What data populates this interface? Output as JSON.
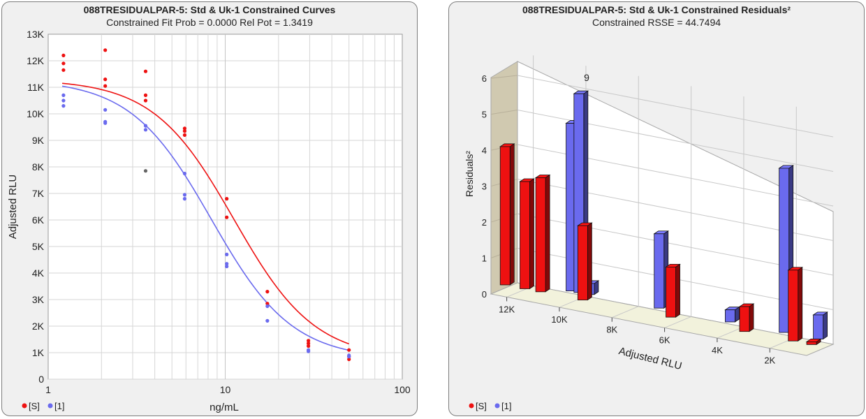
{
  "colors": {
    "std": "#ee1111",
    "uk": "#6a6aee",
    "outlier": "#666666",
    "grid": "#d6d6d6",
    "wall": "#d0c9b0",
    "floor": "#f2f2dc"
  },
  "left_panel": {
    "title": "088TRESIDUALPAR-5: Std & Uk-1 Constrained Curves",
    "subtitle": "Constrained Fit Prob = 0.0000  Rel Pot = 1.3419",
    "ylabel": "Adjusted RLU",
    "xlabel": "ng/mL",
    "yticks": [
      "0",
      "1K",
      "2K",
      "3K",
      "4K",
      "5K",
      "6K",
      "7K",
      "8K",
      "9K",
      "10K",
      "11K",
      "12K",
      "13K"
    ],
    "xticks": [
      "1",
      "10",
      "100"
    ],
    "legend": {
      "std": "[S]",
      "uk": "[1]"
    }
  },
  "right_panel": {
    "title": "088TRESIDUALPAR-5: Std & Uk-1  Constrained Residuals²",
    "subtitle": "Constrained RSSE = 44.7494",
    "ylabel": "Residuals²",
    "xlabel": "Adjusted RLU",
    "yticks": [
      "0",
      "1",
      "2",
      "3",
      "4",
      "5",
      "6"
    ],
    "xticks": [
      "12K",
      "10K",
      "8K",
      "6K",
      "4K",
      "2K"
    ],
    "bar_label": "9",
    "legend": {
      "std": "[S]",
      "uk": "[1]"
    }
  },
  "chart_data": [
    {
      "type": "scatter",
      "title": "088TRESIDUALPAR-5: Std & Uk-1 Constrained Curves",
      "subtitle": "Constrained Fit Prob = 0.0000  Rel Pot = 1.3419",
      "xlabel": "ng/mL",
      "ylabel": "Adjusted RLU",
      "xscale": "log",
      "xlim": [
        1,
        100
      ],
      "ylim": [
        0,
        13000
      ],
      "grid": true,
      "legend": "bottom-left",
      "series": [
        {
          "name": "[S]",
          "color": "#ee1111",
          "points": [
            [
              1.22,
              12200
            ],
            [
              1.22,
              11900
            ],
            [
              1.22,
              11650
            ],
            [
              2.1,
              12400
            ],
            [
              2.1,
              11300
            ],
            [
              2.1,
              11050
            ],
            [
              3.55,
              11600
            ],
            [
              3.55,
              10700
            ],
            [
              3.55,
              10500
            ],
            [
              5.9,
              9450
            ],
            [
              5.9,
              9350
            ],
            [
              5.9,
              9200
            ],
            [
              10.2,
              6800
            ],
            [
              10.2,
              6100
            ],
            [
              17.3,
              3300
            ],
            [
              17.3,
              2850
            ],
            [
              29.5,
              1450
            ],
            [
              29.5,
              1350
            ],
            [
              29.5,
              1250
            ],
            [
              50,
              1100
            ],
            [
              50,
              850
            ],
            [
              50,
              750
            ]
          ],
          "curve": {
            "model": "4PL",
            "top": 11300,
            "bottom": 750,
            "ec50": 11.2,
            "slope": 1.9
          }
        },
        {
          "name": "[1]",
          "color": "#6a6aee",
          "points": [
            [
              1.22,
              10700
            ],
            [
              1.22,
              10500
            ],
            [
              1.22,
              10300
            ],
            [
              2.1,
              10150
            ],
            [
              2.1,
              9700
            ],
            [
              2.1,
              9650
            ],
            [
              3.55,
              9550
            ],
            [
              3.55,
              9400
            ],
            [
              5.9,
              7750
            ],
            [
              5.9,
              6950
            ],
            [
              5.9,
              6800
            ],
            [
              10.2,
              4700
            ],
            [
              10.2,
              4350
            ],
            [
              10.2,
              4250
            ],
            [
              17.3,
              2750
            ],
            [
              17.3,
              2200
            ],
            [
              29.5,
              1100
            ],
            [
              29.5,
              1050
            ],
            [
              50,
              900
            ],
            [
              50,
              850
            ]
          ],
          "curve": {
            "model": "4PL",
            "top": 11300,
            "bottom": 750,
            "ec50": 8.35,
            "slope": 1.9
          }
        },
        {
          "name": "",
          "color": "#666666",
          "points": [
            [
              3.55,
              7850
            ]
          ]
        }
      ]
    },
    {
      "type": "bar",
      "title": "088TRESIDUALPAR-5: Std & Uk-1  Constrained Residuals²",
      "subtitle": "Constrained RSSE = 44.7494",
      "xlabel": "Adjusted RLU",
      "ylabel": "Residuals²",
      "xlim": [
        12600,
        600
      ],
      "ylim": [
        0,
        6
      ],
      "grid": true,
      "legend": "bottom-left",
      "series": [
        {
          "name": "[S]",
          "color": "#ee1111",
          "x": [
            12400,
            11650,
            11050,
            9450,
            6100,
            3300,
            1450,
            750
          ],
          "values": [
            4.0,
            3.1,
            3.3,
            2.15,
            1.45,
            0.72,
            2.05,
            0.08
          ]
        },
        {
          "name": "[1]",
          "color": "#6a6aee",
          "x": [
            10300,
            10000,
            9600,
            6950,
            4250,
            2200,
            900
          ],
          "values": [
            4.85,
            5.75,
            0.32,
            2.15,
            0.35,
            4.75,
            0.7
          ]
        }
      ]
    }
  ]
}
